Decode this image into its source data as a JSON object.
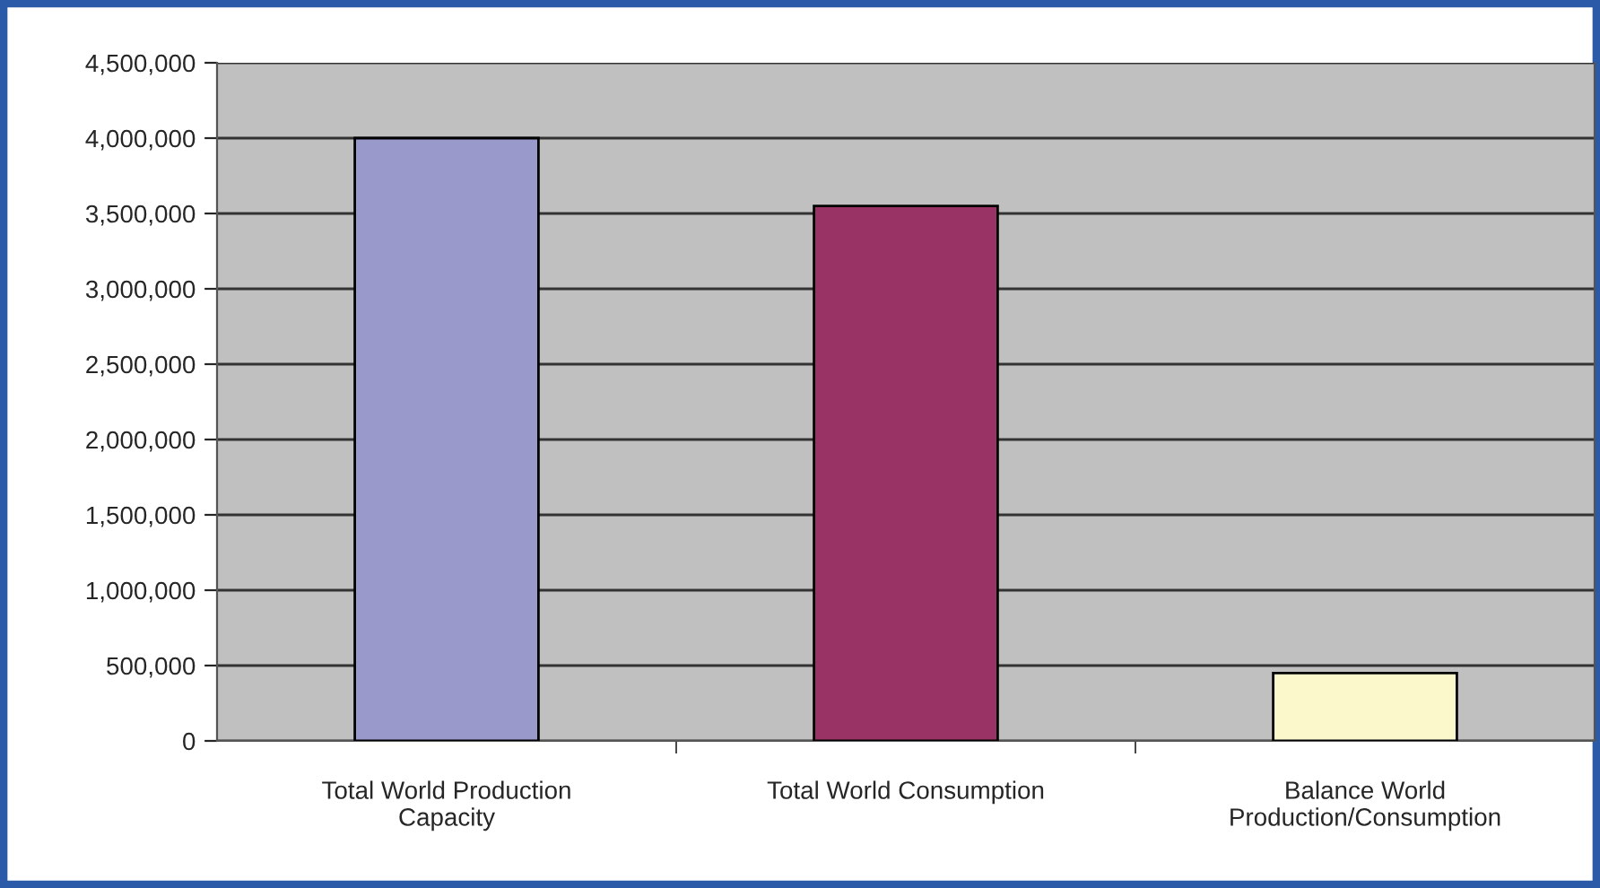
{
  "chart_data": {
    "type": "bar",
    "categories": [
      "Total World Production\nCapacity",
      "Total World Consumption",
      "Balance World\nProduction/Consumption"
    ],
    "values": [
      4000000,
      3550000,
      450000
    ],
    "colors": [
      "#9999cc",
      "#993366",
      "#fbf8cc"
    ],
    "ylim": [
      0,
      4500000
    ],
    "yticks": [
      {
        "value": 0,
        "label": "0"
      },
      {
        "value": 500000,
        "label": "500,000"
      },
      {
        "value": 1000000,
        "label": "1,000,000"
      },
      {
        "value": 1500000,
        "label": "1,500,000"
      },
      {
        "value": 2000000,
        "label": "2,000,000"
      },
      {
        "value": 2500000,
        "label": "2,500,000"
      },
      {
        "value": 3000000,
        "label": "3,000,000"
      },
      {
        "value": 3500000,
        "label": "3,500,000"
      },
      {
        "value": 4000000,
        "label": "4,000,000"
      },
      {
        "value": 4500000,
        "label": "4,500,000"
      }
    ],
    "grid": "y",
    "legend": false
  }
}
